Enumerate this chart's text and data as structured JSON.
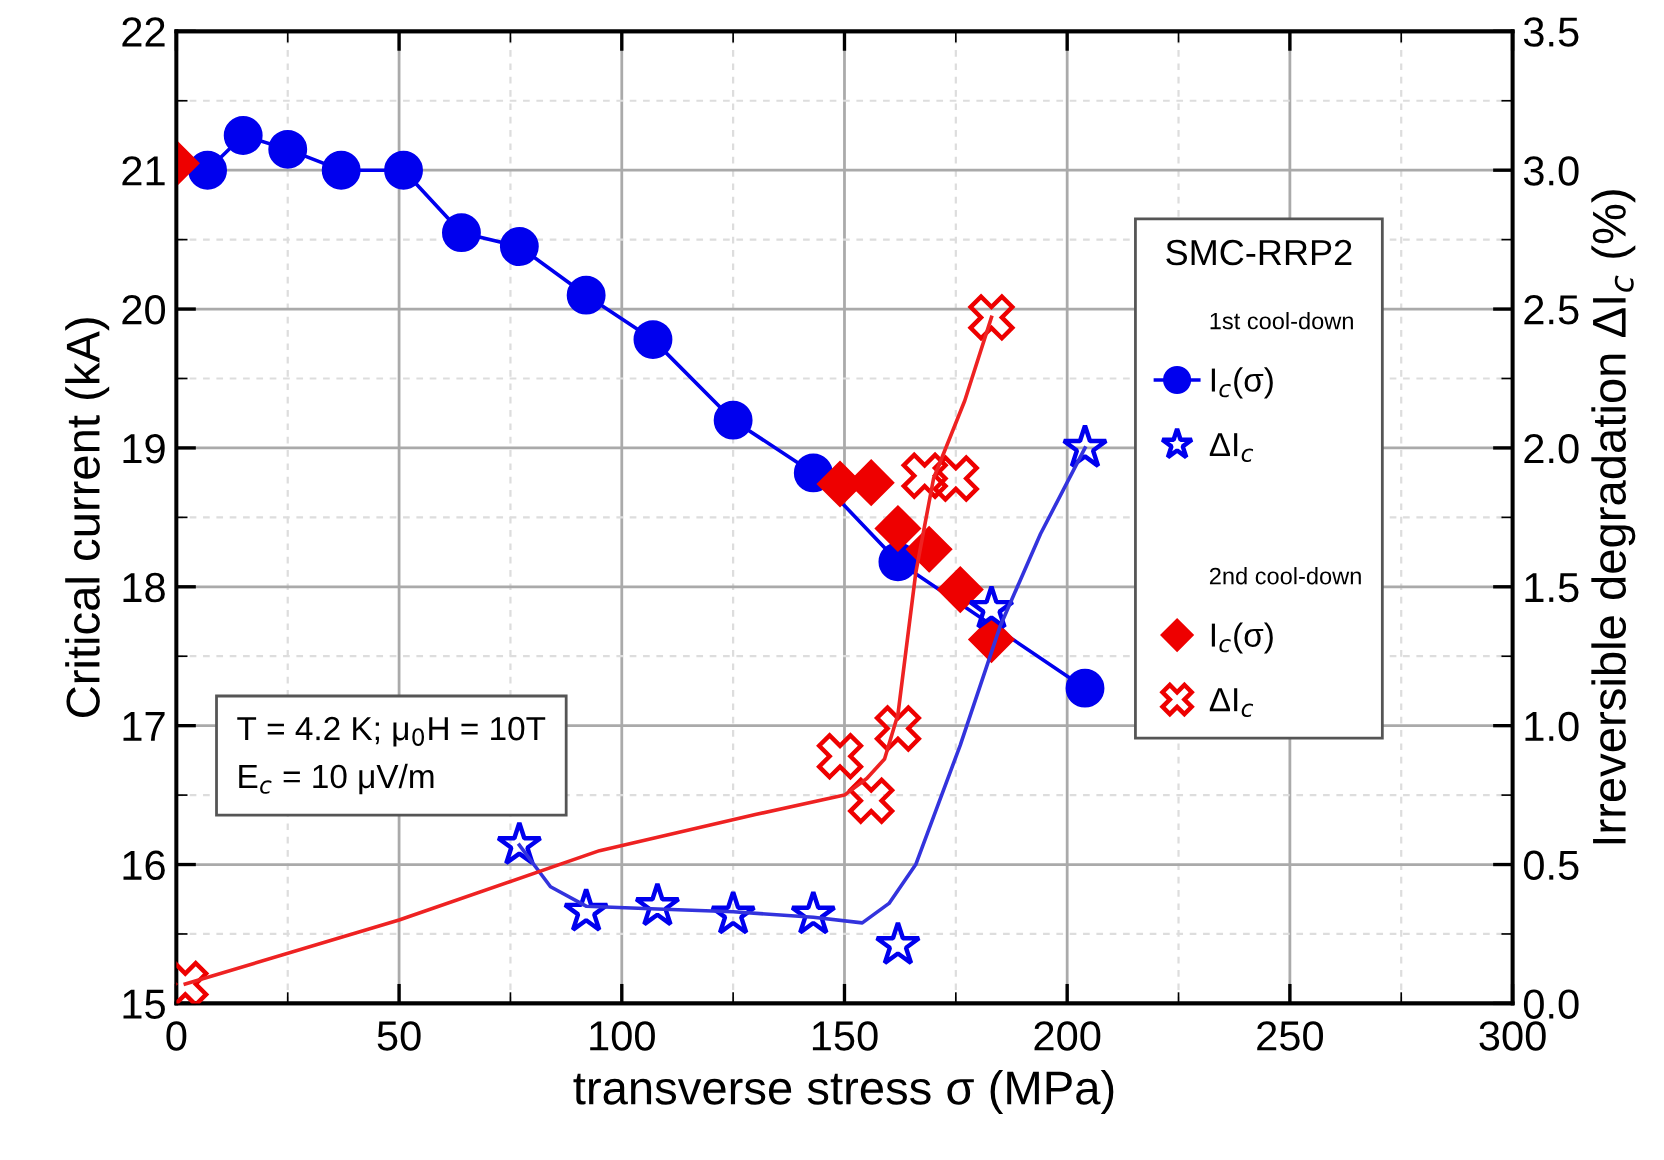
{
  "chart_data": {
    "type": "line",
    "xlabel": "transverse stress σ (MPa)",
    "ylabel": "Critical current (kA)",
    "y2label": "Irreversible degradation ΔI$_{c}$ (%)",
    "legend_title": "SMC-RRP2",
    "legend": "right",
    "grid": true,
    "annotations": [
      "1st cool-down",
      "2nd cool-down",
      "T = 4.2 K; μ$_{0}$H = 10T\nE$_{c}$ = 10 μV/m"
    ],
    "xlim": [
      0,
      300
    ],
    "xticks": [
      0,
      {
        "value": 25,
        "label": null
      },
      50,
      {
        "value": 75,
        "label": null
      },
      100,
      {
        "value": 125,
        "label": null
      },
      150,
      {
        "value": 175,
        "label": null
      },
      200,
      {
        "value": 225,
        "label": null
      },
      250,
      {
        "value": 275,
        "label": null
      },
      300
    ],
    "ylim": [
      15,
      22
    ],
    "yticks": [
      15,
      {
        "value": 15.5,
        "label": null
      },
      16,
      {
        "value": 16.5,
        "label": null
      },
      17,
      {
        "value": 17.5,
        "label": null
      },
      18,
      {
        "value": 18.5,
        "label": null
      },
      19,
      {
        "value": 19.5,
        "label": null
      },
      20,
      {
        "value": 20.5,
        "label": null
      },
      21,
      {
        "value": 21.5,
        "label": null
      },
      22
    ],
    "y2lim": [
      0,
      3.5
    ],
    "y2ticks": [
      {
        "value": 0,
        "label": "0.0"
      },
      {
        "value": 0.25,
        "label": null
      },
      0.5,
      {
        "value": 0.75,
        "label": null
      },
      {
        "value": 1,
        "label": "1.0"
      },
      {
        "value": 1.25,
        "label": null
      },
      1.5,
      {
        "value": 1.75,
        "label": null
      },
      {
        "value": 2,
        "label": "2.0"
      },
      {
        "value": 2.25,
        "label": null
      },
      2.5,
      {
        "value": 2.75,
        "label": null
      },
      {
        "value": 3,
        "label": "3.0"
      },
      {
        "value": 3.25,
        "label": null
      },
      3.5
    ],
    "series": [
      {
        "name": "I$_{c}$(σ)",
        "marker": "circle",
        "color": "#0000ee",
        "x": [
          7,
          15,
          25,
          37,
          51,
          64,
          77,
          92,
          107,
          125,
          143,
          162,
          204
        ],
        "values": [
          21.0,
          21.25,
          21.15,
          21.0,
          21.0,
          20.55,
          20.45,
          20.1,
          19.78,
          19.2,
          18.82,
          18.18,
          17.27
        ]
      },
      {
        "name": "ΔI$_{c}$",
        "type": "scatter",
        "marker": "star",
        "axis": "y2",
        "color": "#0000ee",
        "x": [
          77,
          92,
          108,
          125,
          143,
          162,
          183,
          204
        ],
        "values": [
          0.57,
          0.33,
          0.35,
          0.32,
          0.32,
          0.21,
          1.42,
          2.0
        ]
      },
      {
        "axis": "y2",
        "color": "#3333dd",
        "x": [
          77,
          84,
          92,
          108,
          125,
          143,
          154,
          160,
          166,
          176,
          185,
          194,
          204
        ],
        "values": [
          0.57,
          0.42,
          0.35,
          0.34,
          0.33,
          0.31,
          0.29,
          0.36,
          0.5,
          0.93,
          1.36,
          1.69,
          2.0
        ]
      },
      {
        "name": "I$_{c}$(σ)",
        "type": "scatter",
        "marker": "diamond",
        "color": "#ee0000",
        "x": [
          0,
          149,
          156,
          162,
          169,
          176,
          183
        ],
        "values": [
          21.05,
          18.74,
          18.75,
          18.42,
          18.27,
          17.98,
          17.62
        ]
      },
      {
        "name": "ΔI$_{c}$",
        "type": "scatter",
        "marker": "cross",
        "axis": "y2",
        "color": "#ee0000",
        "x": [
          2,
          149,
          156,
          162,
          168,
          175,
          183
        ],
        "values": [
          0.07,
          0.89,
          0.73,
          0.99,
          1.9,
          1.89,
          2.47
        ]
      },
      {
        "axis": "y2",
        "color": "#ee2222",
        "x": [
          2,
          50,
          95,
          130,
          150,
          155,
          159,
          162,
          166,
          170,
          177,
          183
        ],
        "values": [
          0.07,
          0.3,
          0.55,
          0.68,
          0.75,
          0.81,
          0.88,
          1.04,
          1.55,
          1.89,
          2.17,
          2.47
        ]
      }
    ]
  }
}
